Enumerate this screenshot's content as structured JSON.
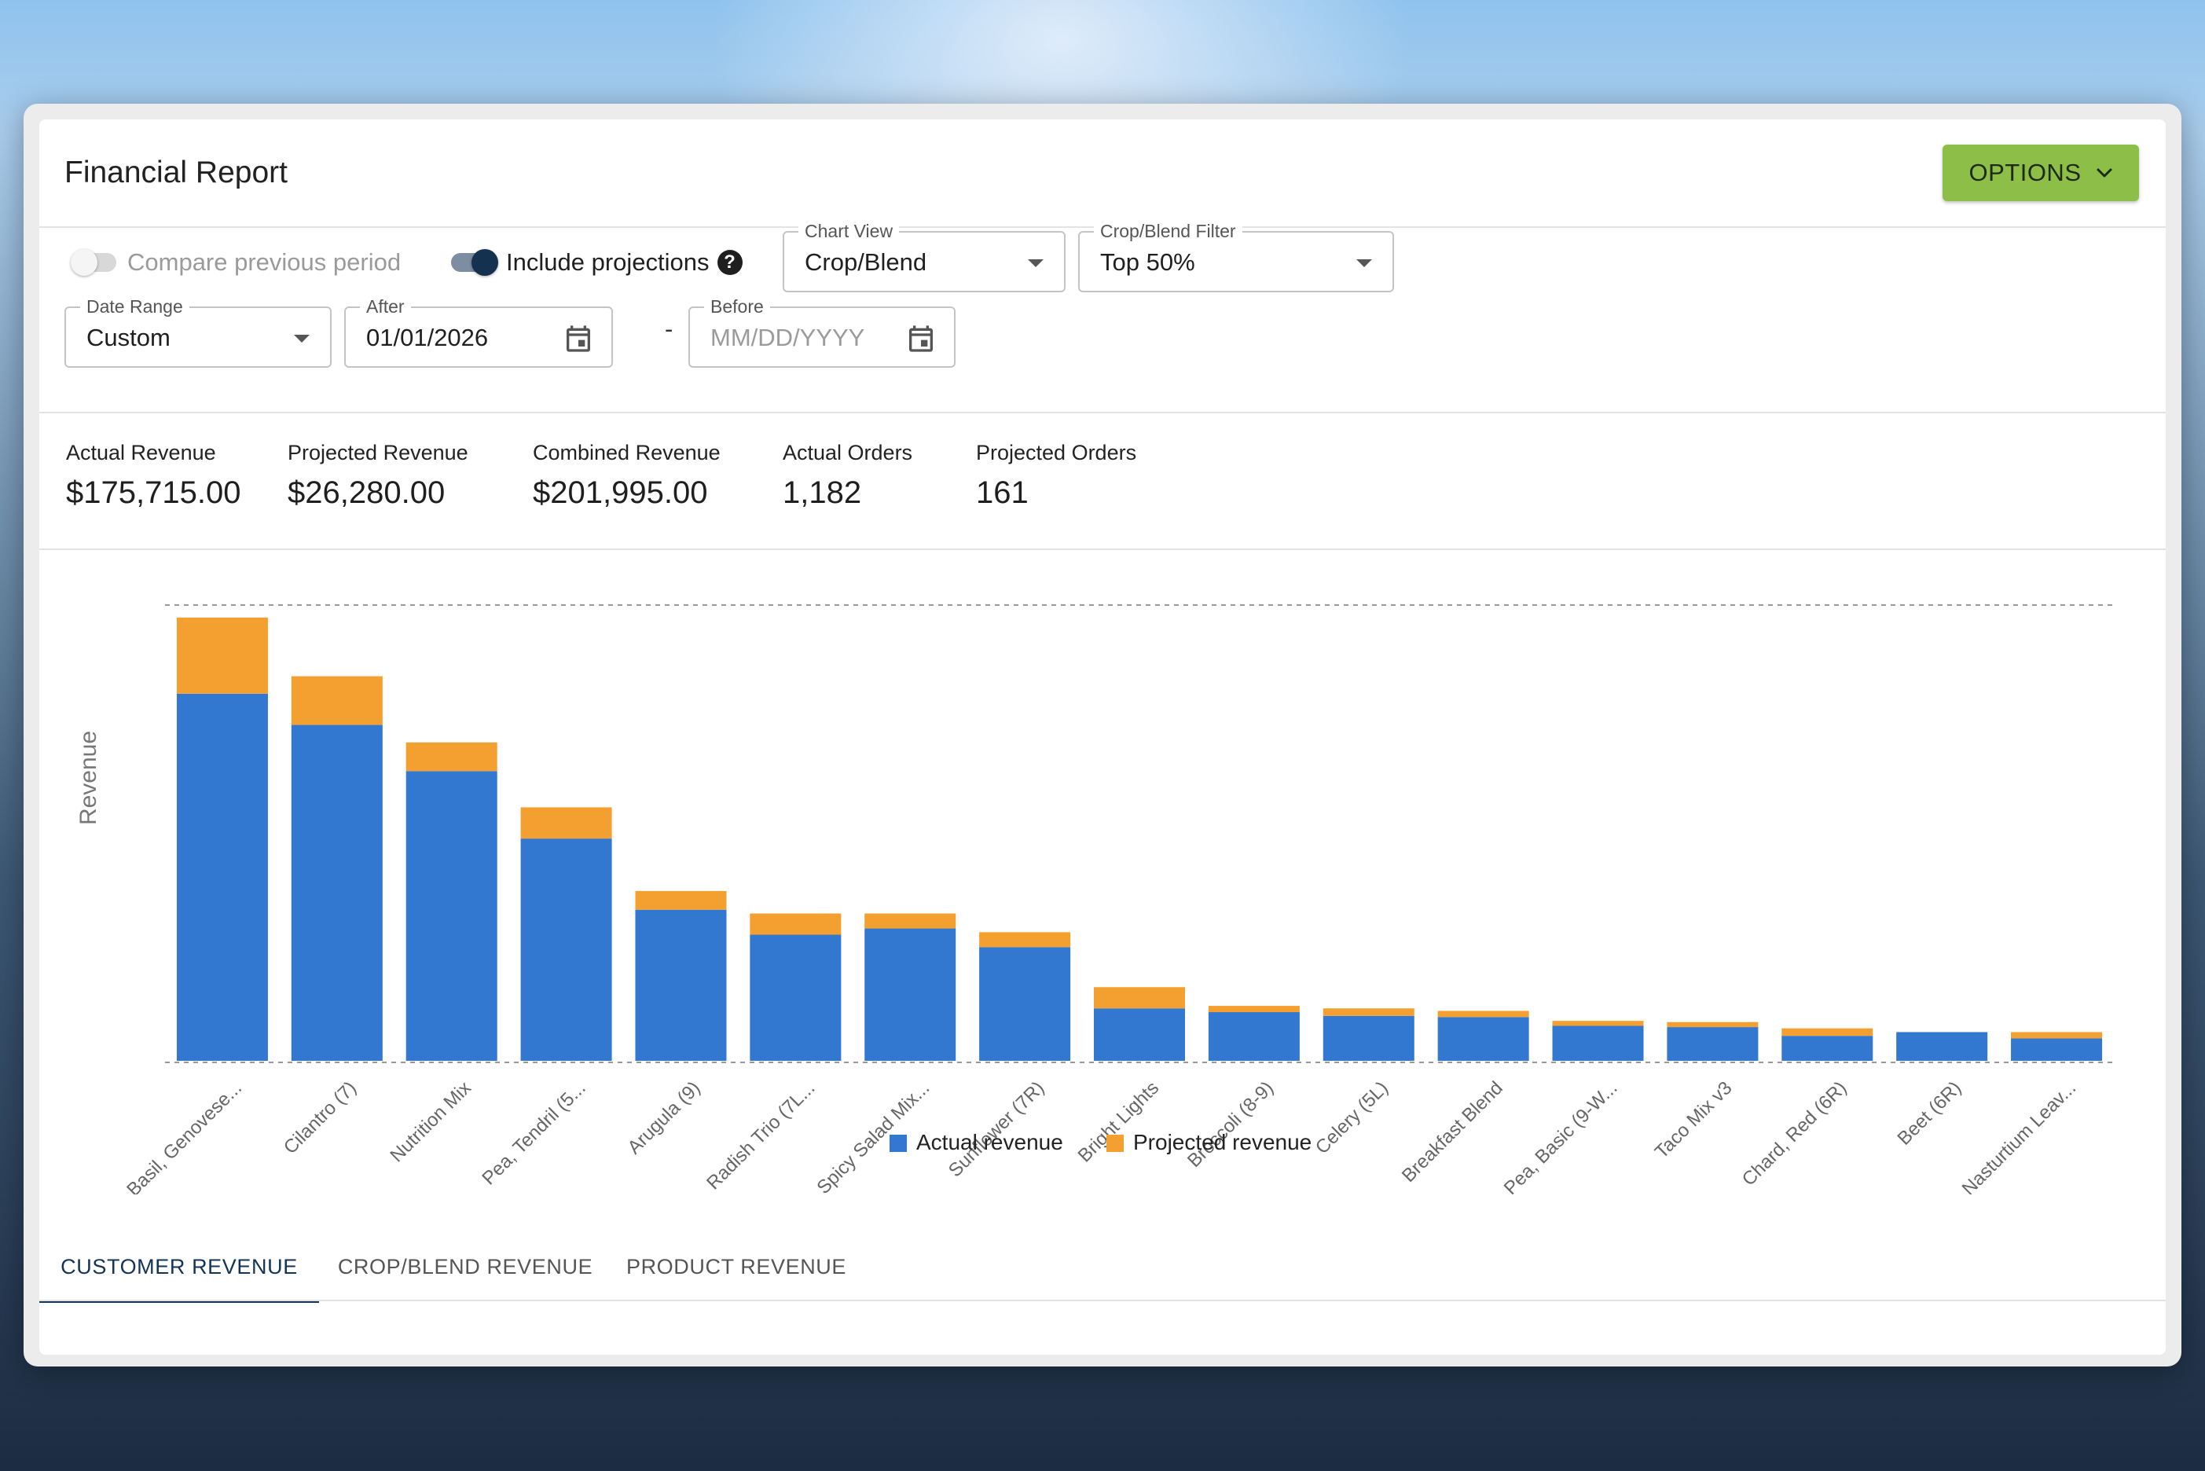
{
  "header": {
    "title": "Financial Report",
    "options_label": "OPTIONS"
  },
  "filters": {
    "compare_label": "Compare previous period",
    "compare_on": false,
    "projections_label": "Include projections",
    "projections_on": true,
    "chart_view": {
      "label": "Chart View",
      "value": "Crop/Blend"
    },
    "crop_filter": {
      "label": "Crop/Blend Filter",
      "value": "Top 50%"
    },
    "date_range": {
      "label": "Date Range",
      "value": "Custom"
    },
    "after": {
      "label": "After",
      "value": "01/01/2026"
    },
    "before": {
      "label": "Before",
      "value": "",
      "placeholder": "MM/DD/YYYY"
    },
    "separator": "-"
  },
  "stats": [
    {
      "label": "Actual Revenue",
      "value": "$175,715.00"
    },
    {
      "label": "Projected Revenue",
      "value": "$26,280.00"
    },
    {
      "label": "Combined Revenue",
      "value": "$201,995.00"
    },
    {
      "label": "Actual Orders",
      "value": "1,182"
    },
    {
      "label": "Projected Orders",
      "value": "161"
    }
  ],
  "chart_data": {
    "type": "bar",
    "stacked": true,
    "title": "",
    "xlabel": "",
    "ylabel": "Revenue",
    "ylim": [
      0,
      36500
    ],
    "grid": false,
    "legend": "bottom",
    "categories": [
      "Basil, Genovese...",
      "Cilantro (7)",
      "Nutrition Mix",
      "Pea, Tendril (5...",
      "Arugula (9)",
      "Radish Trio (7L...",
      "Spicy Salad Mix...",
      "Sunflower (7R)",
      "Bright Lights",
      "Broccoli (8-9)",
      "Celery (5L)",
      "Breakfast Blend",
      "Pea, Basic (9-W...",
      "Taco Mix v3",
      "Chard, Red (6R)",
      "Beet (6R)",
      "Nasturtium Leav..."
    ],
    "series": [
      {
        "name": "Actual revenue",
        "color": "#3277d0",
        "values": [
          29400,
          26900,
          23200,
          17800,
          12100,
          10100,
          10600,
          9100,
          4200,
          3900,
          3600,
          3500,
          2800,
          2700,
          2000,
          2300,
          1800
        ]
      },
      {
        "name": "Projected revenue",
        "color": "#f4a030",
        "values": [
          6100,
          3900,
          2300,
          2500,
          1500,
          1700,
          1200,
          1200,
          1700,
          500,
          600,
          500,
          400,
          400,
          600,
          0,
          500
        ]
      }
    ]
  },
  "tabs": [
    {
      "label": "CUSTOMER REVENUE",
      "active": true
    },
    {
      "label": "CROP/BLEND REVENUE",
      "active": false
    },
    {
      "label": "PRODUCT REVENUE",
      "active": false
    }
  ]
}
